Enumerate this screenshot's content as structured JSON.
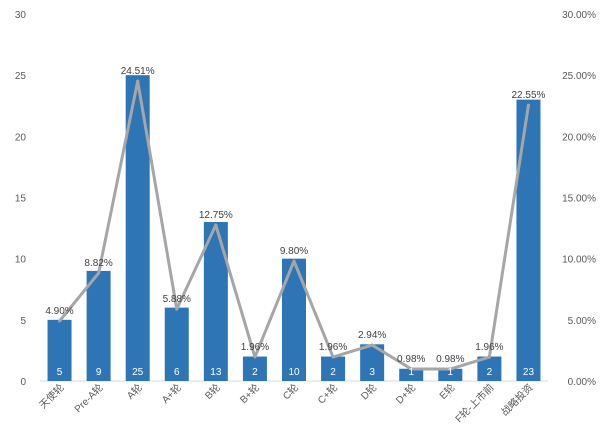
{
  "chart_data": {
    "type": "bar",
    "categories": [
      "天使轮",
      "Pre-A轮",
      "A轮",
      "A+轮",
      "B轮",
      "B+轮",
      "C轮",
      "C+轮",
      "D轮",
      "D+轮",
      "E轮",
      "F轮-上市前",
      "战略投资"
    ],
    "series": [
      {
        "type": "bar",
        "axis": "left",
        "color": "#2e75b6",
        "values": [
          5,
          9,
          25,
          6,
          13,
          2,
          10,
          2,
          3,
          1,
          1,
          2,
          23
        ]
      },
      {
        "type": "line",
        "axis": "right",
        "color": "#a6a6a6",
        "values": [
          4.9,
          8.82,
          24.51,
          5.88,
          12.75,
          1.96,
          9.8,
          1.96,
          2.94,
          0.98,
          0.98,
          1.96,
          22.55
        ]
      }
    ],
    "bar_labels": [
      "5",
      "9",
      "25",
      "6",
      "13",
      "2",
      "10",
      "2",
      "3",
      "1",
      "1",
      "2",
      "23"
    ],
    "line_labels": [
      "4.90%",
      "8.82%",
      "24.51%",
      "5.88%",
      "12.75%",
      "1.96%",
      "9.80%",
      "1.96%",
      "2.94%",
      "0.98%",
      "0.98%",
      "1.96%",
      "22.55%"
    ],
    "y_left": {
      "ticks": [
        "0",
        "5",
        "10",
        "15",
        "20",
        "25",
        "30"
      ],
      "range": [
        0,
        30
      ]
    },
    "y_right": {
      "ticks": [
        "0.00%",
        "5.00%",
        "10.00%",
        "15.00%",
        "20.00%",
        "25.00%",
        "30.00%"
      ],
      "range": [
        0,
        30
      ]
    },
    "grid": false,
    "legend": "none"
  }
}
